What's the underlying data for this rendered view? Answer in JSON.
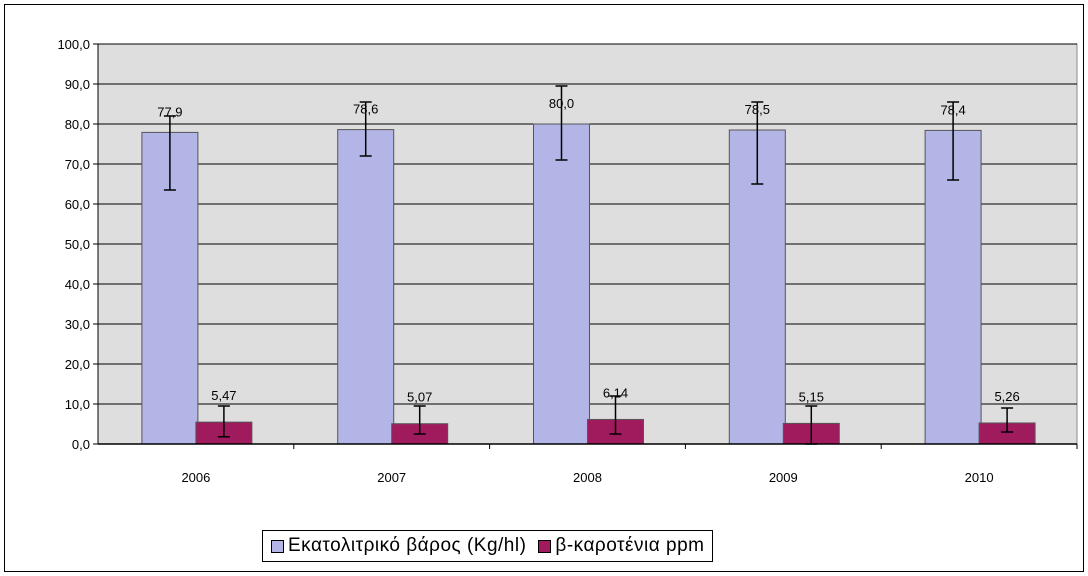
{
  "chart_data": {
    "type": "bar",
    "categories": [
      "2006",
      "2007",
      "2008",
      "2009",
      "2010"
    ],
    "series": [
      {
        "name": "Εκατολιτρικό βάρος (Kg/hl)",
        "color": "#b3b5e6",
        "values": [
          77.9,
          78.6,
          80.0,
          78.5,
          78.4
        ],
        "labels": [
          "77,9",
          "78,6",
          "80,0",
          "78,5",
          "78,4"
        ],
        "error_low": [
          63.5,
          72.0,
          71.0,
          65.0,
          66.0
        ],
        "error_high": [
          82.0,
          85.5,
          89.5,
          85.5,
          85.5
        ]
      },
      {
        "name": "β-καροτένια ppm",
        "color": "#a01b5e",
        "values": [
          5.47,
          5.07,
          6.14,
          5.15,
          5.26
        ],
        "labels": [
          "5,47",
          "5,07",
          "6,14",
          "5,15",
          "5,26"
        ],
        "error_low": [
          1.8,
          2.5,
          2.5,
          0.0,
          3.0
        ],
        "error_high": [
          9.5,
          9.5,
          12.0,
          9.5,
          9.0
        ]
      }
    ],
    "yticks": [
      "0,0",
      "10,0",
      "20,0",
      "30,0",
      "40,0",
      "50,0",
      "60,0",
      "70,0",
      "80,0",
      "90,0",
      "100,0"
    ],
    "ylim": [
      0,
      100
    ],
    "grid": true,
    "legend_position": "bottom",
    "plot_background": "#dedede"
  }
}
